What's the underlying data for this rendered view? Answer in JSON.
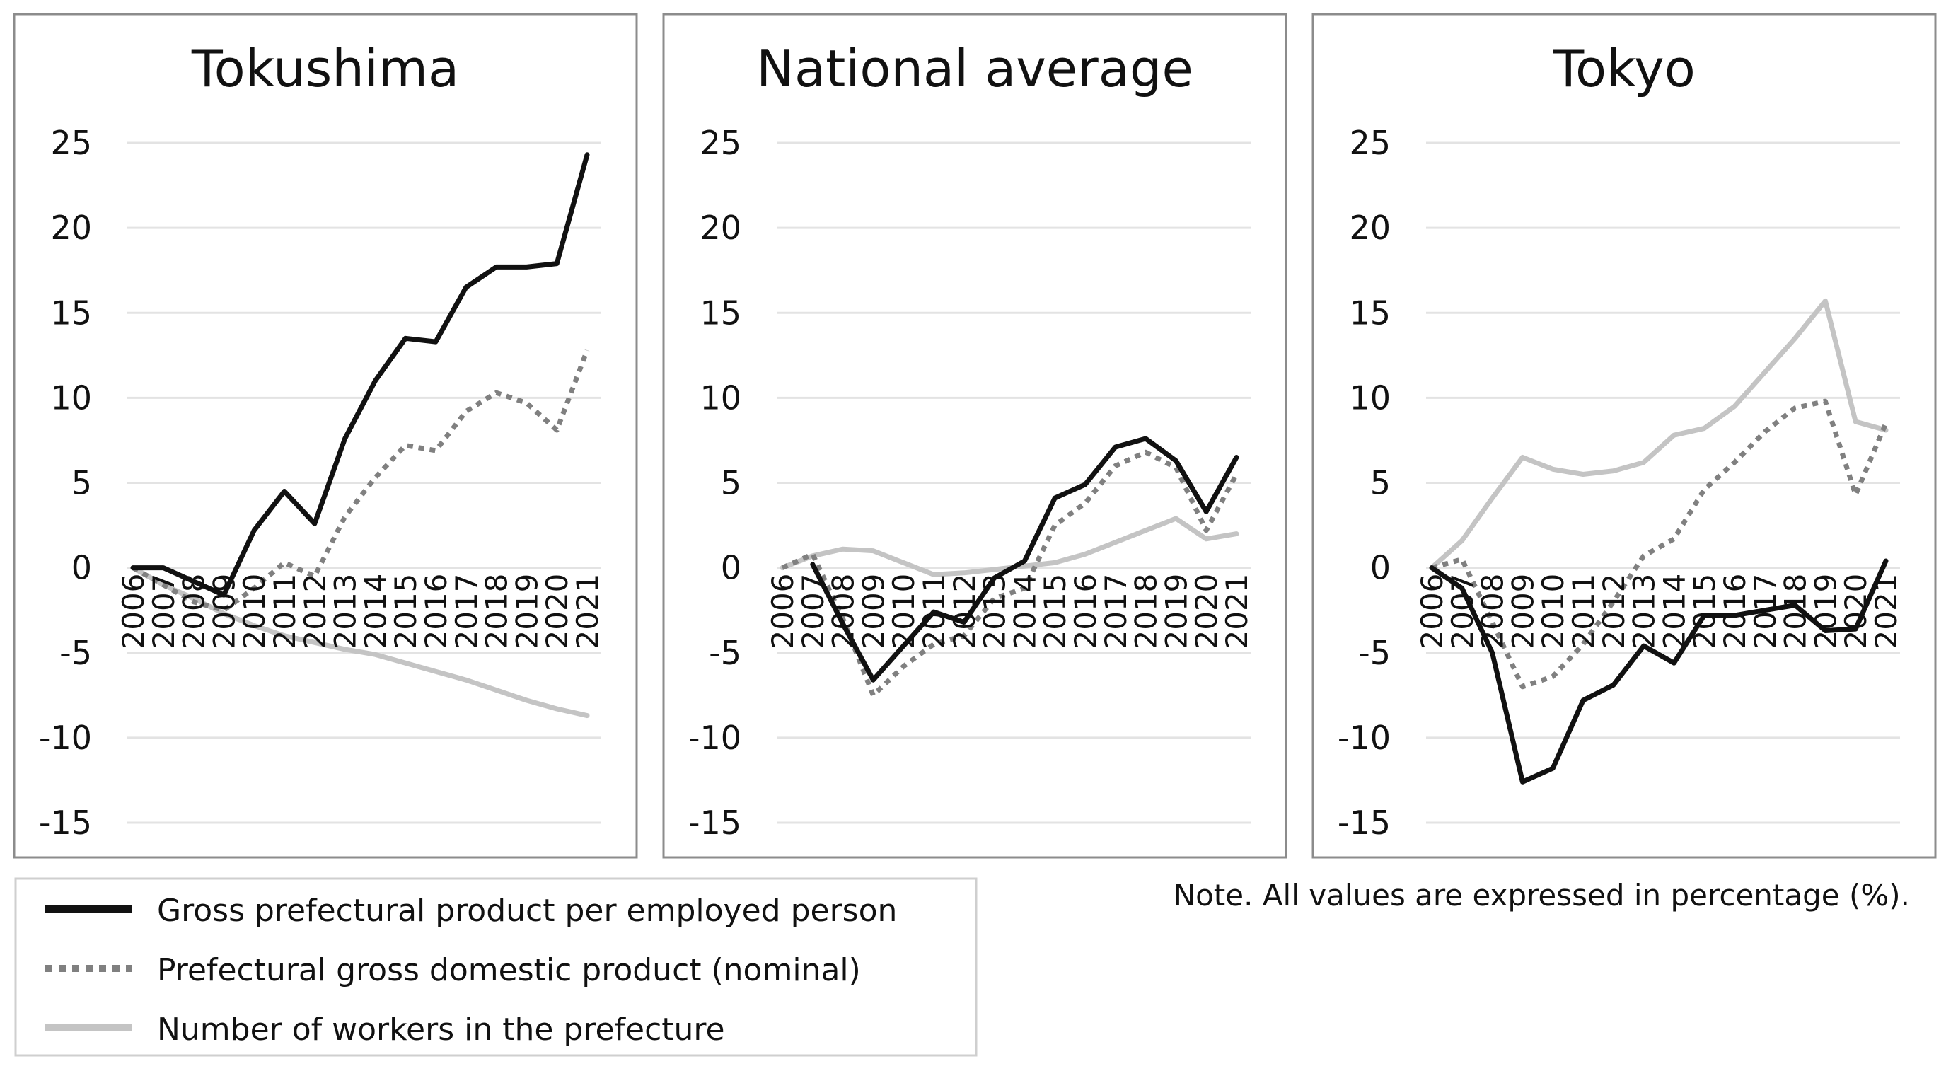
{
  "chart_data": [
    {
      "type": "line",
      "title": "Tokushima",
      "xlabel": "",
      "ylabel": "",
      "ylim": [
        -15,
        25
      ],
      "yticks": [
        25,
        20,
        15,
        10,
        5,
        0,
        -5,
        -10,
        -15
      ],
      "x": [
        2006,
        2007,
        2008,
        2009,
        2010,
        2011,
        2012,
        2013,
        2014,
        2015,
        2016,
        2017,
        2018,
        2019,
        2020,
        2021
      ],
      "series": [
        {
          "name": "Gross prefectural product per employed person",
          "values": [
            0,
            0,
            -0.8,
            -1.6,
            2.2,
            4.5,
            2.6,
            7.6,
            11.0,
            13.5,
            13.3,
            16.5,
            17.7,
            17.7,
            17.9,
            24.3
          ]
        },
        {
          "name": "Prefectural gross domestic product (nominal)",
          "values": [
            0,
            -1.0,
            -2.0,
            -2.5,
            -1.2,
            0.3,
            -0.5,
            3.0,
            5.3,
            7.2,
            6.9,
            9.2,
            10.3,
            9.7,
            8.1,
            12.8
          ]
        },
        {
          "name": "Number of workers in the prefecture",
          "values": [
            0,
            -1.0,
            -1.8,
            -2.7,
            -3.4,
            -4.0,
            -4.4,
            -4.8,
            -5.1,
            -5.6,
            -6.1,
            -6.6,
            -7.2,
            -7.8,
            -8.3,
            -8.7
          ]
        }
      ]
    },
    {
      "type": "line",
      "title": "National average",
      "xlabel": "",
      "ylabel": "",
      "ylim": [
        -15,
        25
      ],
      "yticks": [
        25,
        20,
        15,
        10,
        5,
        0,
        -5,
        -10,
        -15
      ],
      "x": [
        2006,
        2007,
        2008,
        2009,
        2010,
        2011,
        2012,
        2013,
        2014,
        2015,
        2016,
        2017,
        2018,
        2019,
        2020,
        2021
      ],
      "series": [
        {
          "name": "Gross prefectural product per employed person",
          "values": [
            null,
            0.2,
            -3.3,
            -6.6,
            -4.6,
            -2.6,
            -3.2,
            -0.6,
            0.4,
            4.1,
            4.9,
            7.1,
            7.6,
            6.3,
            3.3,
            6.5
          ]
        },
        {
          "name": "Prefectural gross domestic product (nominal)",
          "values": [
            0,
            0.8,
            -3.0,
            -7.5,
            -5.8,
            -4.5,
            -4.0,
            -1.8,
            -1.2,
            2.5,
            3.8,
            6.0,
            6.8,
            5.9,
            2.2,
            5.5
          ]
        },
        {
          "name": "Number of workers in the prefecture",
          "values": [
            0,
            0.7,
            1.1,
            1.0,
            0.3,
            -0.4,
            -0.3,
            -0.1,
            0.1,
            0.3,
            0.8,
            1.5,
            2.2,
            2.9,
            1.7,
            2.0
          ]
        }
      ]
    },
    {
      "type": "line",
      "title": "Tokyo",
      "xlabel": "",
      "ylabel": "",
      "ylim": [
        -15,
        25
      ],
      "yticks": [
        25,
        20,
        15,
        10,
        5,
        0,
        -5,
        -10,
        -15
      ],
      "x": [
        2006,
        2007,
        2008,
        2009,
        2010,
        2011,
        2012,
        2013,
        2014,
        2015,
        2016,
        2017,
        2018,
        2019,
        2020,
        2021
      ],
      "series": [
        {
          "name": "Gross prefectural product per employed person",
          "values": [
            0,
            -1.2,
            -5.0,
            -12.6,
            -11.8,
            -7.8,
            -6.9,
            -4.6,
            -5.6,
            -2.8,
            -2.8,
            -2.5,
            -2.2,
            -3.7,
            -3.6,
            0.4
          ]
        },
        {
          "name": "Prefectural gross domestic product (nominal)",
          "values": [
            0,
            0.5,
            -3.2,
            -7.0,
            -6.4,
            -4.5,
            -2.0,
            0.7,
            1.7,
            4.6,
            6.2,
            8.0,
            9.4,
            9.8,
            4.3,
            8.5
          ]
        },
        {
          "name": "Number of workers in the prefecture",
          "values": [
            0,
            1.6,
            4.1,
            6.5,
            5.8,
            5.5,
            5.7,
            6.2,
            7.8,
            8.2,
            9.5,
            11.5,
            13.5,
            15.7,
            8.6,
            8.1
          ]
        }
      ]
    }
  ],
  "legend": {
    "items": [
      {
        "label": "Gross prefectural product per employed person",
        "style": "solid",
        "color": "#111111"
      },
      {
        "label": "Prefectural gross domestic product (nominal)",
        "style": "dotted",
        "color": "#808080"
      },
      {
        "label": "Number of workers in the prefecture",
        "style": "solid",
        "color": "#c4c4c4"
      }
    ]
  },
  "note": "Note. All values are expressed in percentage (%).",
  "colors": {
    "frame": "#8c8c8c",
    "grid": "#e3e3e3",
    "series": [
      "#111111",
      "#808080",
      "#c4c4c4"
    ]
  }
}
